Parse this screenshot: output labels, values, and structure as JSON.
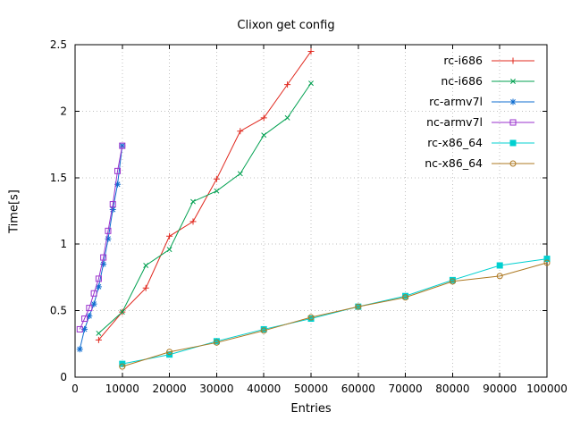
{
  "chart_data": {
    "type": "line",
    "title": "Clixon get config",
    "xlabel": "Entries",
    "ylabel": "Time[s]",
    "xlim": [
      0,
      100000
    ],
    "ylim": [
      0,
      2.5
    ],
    "xticks": [
      0,
      10000,
      20000,
      30000,
      40000,
      50000,
      60000,
      70000,
      80000,
      90000,
      100000
    ],
    "xtick_labels": [
      "0",
      "10000",
      "20000",
      "30000",
      "40000",
      "50000",
      "60000",
      "70000",
      "80000",
      "90000",
      "100000"
    ],
    "yticks": [
      0,
      0.5,
      1,
      1.5,
      2,
      2.5
    ],
    "ytick_labels": [
      "0",
      "0.5",
      "1",
      "1.5",
      "2",
      "2.5"
    ],
    "grid": true,
    "legend_position": "top-right-inside",
    "colors": {
      "grid": "#c0c0c0",
      "border": "#000000",
      "text": "#000000",
      "background": "#ffffff"
    },
    "series": [
      {
        "name": "rc-i686",
        "color": "#e0281e",
        "marker": "plus",
        "x": [
          5000,
          10000,
          15000,
          20000,
          25000,
          30000,
          35000,
          40000,
          45000,
          50000
        ],
        "y": [
          0.28,
          0.49,
          0.67,
          1.06,
          1.17,
          1.49,
          1.85,
          1.95,
          2.2,
          2.45
        ]
      },
      {
        "name": "nc-i686",
        "color": "#00a050",
        "marker": "cross",
        "x": [
          5000,
          10000,
          15000,
          20000,
          25000,
          30000,
          35000,
          40000,
          45000,
          50000
        ],
        "y": [
          0.33,
          0.49,
          0.84,
          0.96,
          1.32,
          1.4,
          1.53,
          1.82,
          1.95,
          2.21
        ]
      },
      {
        "name": "rc-armv7l",
        "color": "#0f6dd0",
        "marker": "asterisk",
        "x": [
          1000,
          2000,
          3000,
          4000,
          5000,
          6000,
          7000,
          8000,
          9000,
          10000
        ],
        "y": [
          0.21,
          0.36,
          0.46,
          0.55,
          0.68,
          0.85,
          1.04,
          1.26,
          1.45,
          1.74
        ]
      },
      {
        "name": "nc-armv7l",
        "color": "#9a32cd",
        "marker": "square-open",
        "x": [
          1000,
          2000,
          3000,
          4000,
          5000,
          6000,
          7000,
          8000,
          9000,
          10000
        ],
        "y": [
          0.36,
          0.44,
          0.52,
          0.63,
          0.74,
          0.9,
          1.1,
          1.3,
          1.55,
          1.74
        ]
      },
      {
        "name": "rc-x86_64",
        "color": "#00d0d0",
        "marker": "square-filled",
        "x": [
          10000,
          20000,
          30000,
          40000,
          50000,
          60000,
          70000,
          80000,
          90000,
          100000
        ],
        "y": [
          0.1,
          0.17,
          0.27,
          0.36,
          0.44,
          0.53,
          0.61,
          0.73,
          0.84,
          0.89
        ]
      },
      {
        "name": "nc-x86_64",
        "color": "#ad7821",
        "marker": "circle-open",
        "x": [
          10000,
          20000,
          30000,
          40000,
          50000,
          60000,
          70000,
          80000,
          90000,
          100000
        ],
        "y": [
          0.08,
          0.19,
          0.26,
          0.35,
          0.45,
          0.53,
          0.6,
          0.72,
          0.76,
          0.86
        ]
      }
    ]
  }
}
